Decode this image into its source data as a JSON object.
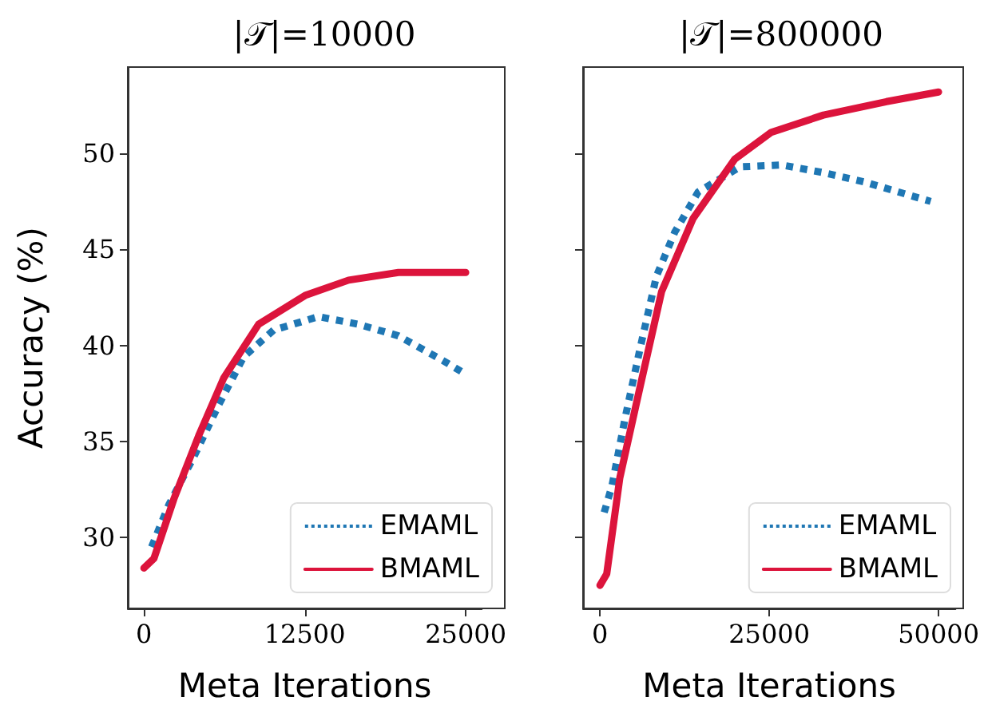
{
  "chart_data": [
    {
      "type": "line",
      "title": "|𝒯|=10000",
      "xlabel": "Meta Iterations",
      "ylabel": "Accuracy (%)",
      "xlim": [
        -1250,
        26250
      ],
      "xticks": [
        0,
        12500,
        25000
      ],
      "ylim": [
        26.3,
        54.5
      ],
      "yticks": [
        30,
        35,
        40,
        45,
        50
      ],
      "grid": false,
      "legend": "bottom right",
      "marker": "none",
      "series": [
        {
          "name": "EMAML",
          "color": "#1f77b4",
          "line_style": "dotted",
          "x": [
            600,
            1940,
            3880,
            5810,
            7750,
            10080,
            13570,
            16670,
            19770,
            23260,
            25000
          ],
          "values": [
            29.5,
            31.7,
            34.2,
            36.9,
            39.4,
            40.8,
            41.5,
            41.1,
            40.5,
            39.2,
            38.5
          ]
        },
        {
          "name": "BMAML",
          "color": "#dc143c",
          "line_style": "solid",
          "x": [
            0,
            780,
            2330,
            4260,
            6200,
            8910,
            12520,
            15900,
            19770,
            25000
          ],
          "values": [
            28.4,
            28.9,
            32.0,
            35.3,
            38.3,
            41.1,
            42.6,
            43.4,
            43.8,
            43.8
          ]
        }
      ]
    },
    {
      "type": "line",
      "title": "|𝒯|=800000",
      "xlabel": "Meta Iterations",
      "xlim": [
        -2500,
        52500
      ],
      "xticks": [
        0,
        25000,
        50000
      ],
      "ylim": [
        26.3,
        54.5
      ],
      "yticks": [
        30,
        35,
        40,
        45,
        50
      ],
      "tick_labels": "x",
      "grid": false,
      "legend": "bottom right",
      "marker": "none",
      "series": [
        {
          "name": "EMAML",
          "color": "#1f77b4",
          "line_style": "dotted",
          "x": [
            620,
            1780,
            3700,
            6020,
            8330,
            11040,
            14510,
            20670,
            26850,
            33000,
            39190,
            48840
          ],
          "values": [
            31.3,
            32.7,
            36.2,
            40.0,
            43.6,
            45.9,
            48.0,
            49.3,
            49.4,
            49.0,
            48.5,
            47.5
          ]
        },
        {
          "name": "BMAML",
          "color": "#dc143c",
          "line_style": "solid",
          "x": [
            0,
            1000,
            2930,
            6020,
            9100,
            13730,
            19900,
            25300,
            33000,
            42300,
            50000
          ],
          "values": [
            27.5,
            28.1,
            33.1,
            38.0,
            42.8,
            46.6,
            49.7,
            51.1,
            52.0,
            52.7,
            53.2
          ]
        }
      ]
    }
  ]
}
